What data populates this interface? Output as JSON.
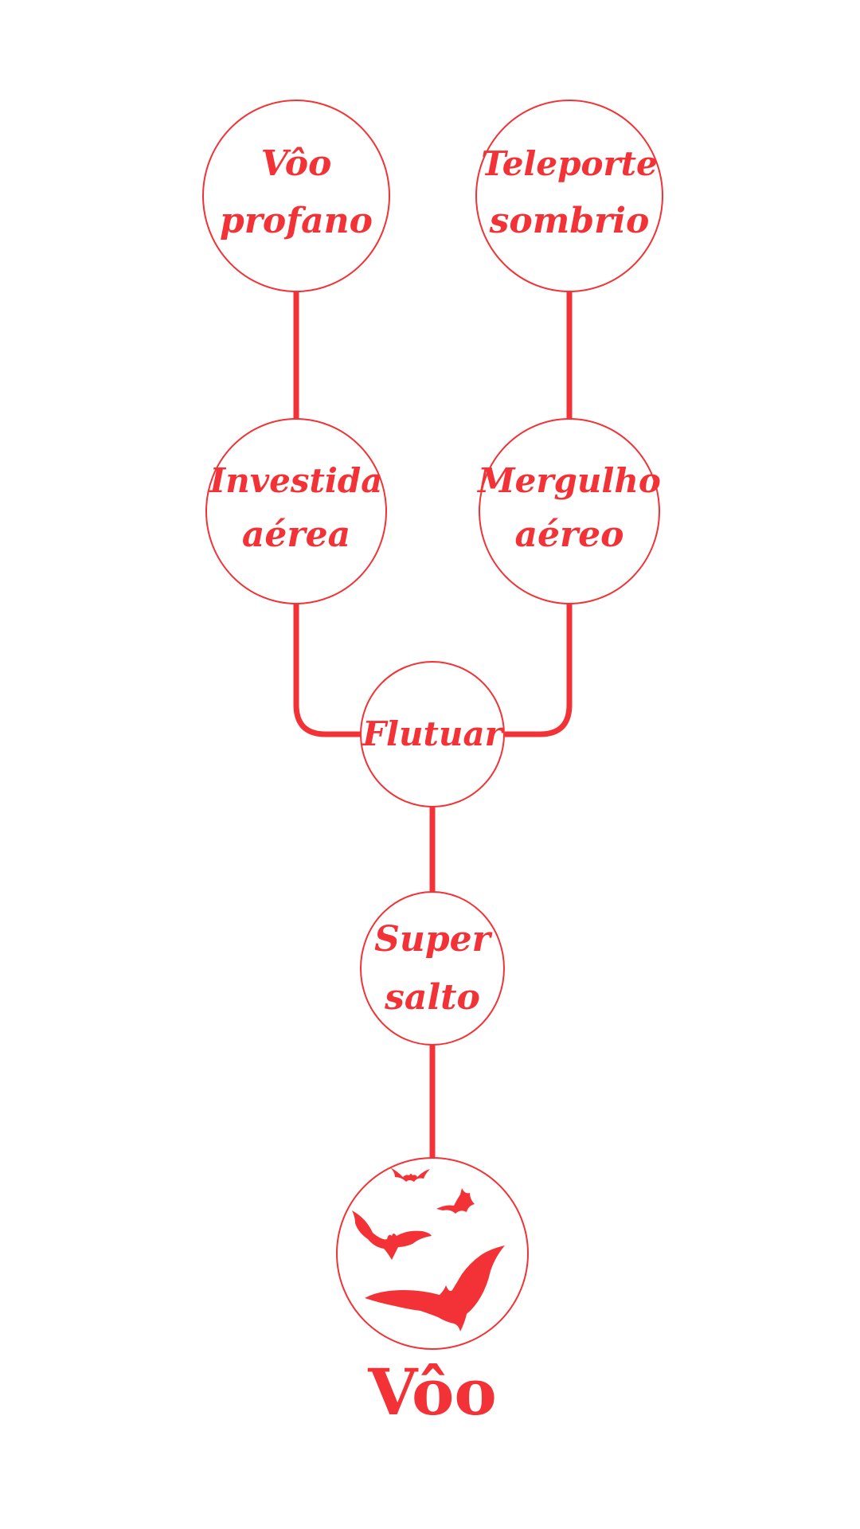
{
  "colors": {
    "accent": "#f23236",
    "background": "#ffffff"
  },
  "skill_tree": {
    "root": {
      "title": "Vôo",
      "icon": "bats-icon"
    },
    "nodes": {
      "voo_profano": {
        "line1": "Vôo",
        "line2": "profano"
      },
      "teleporte_sombrio": {
        "line1": "Teleporte",
        "line2": "sombrio"
      },
      "investida_aerea": {
        "line1": "Investida",
        "line2": "aérea"
      },
      "mergulho_aereo": {
        "line1": "Mergulho",
        "line2": "aéreo"
      },
      "flutuar": {
        "line1": "Flutuar"
      },
      "super_salto": {
        "line1": "Super",
        "line2": "salto"
      }
    }
  }
}
